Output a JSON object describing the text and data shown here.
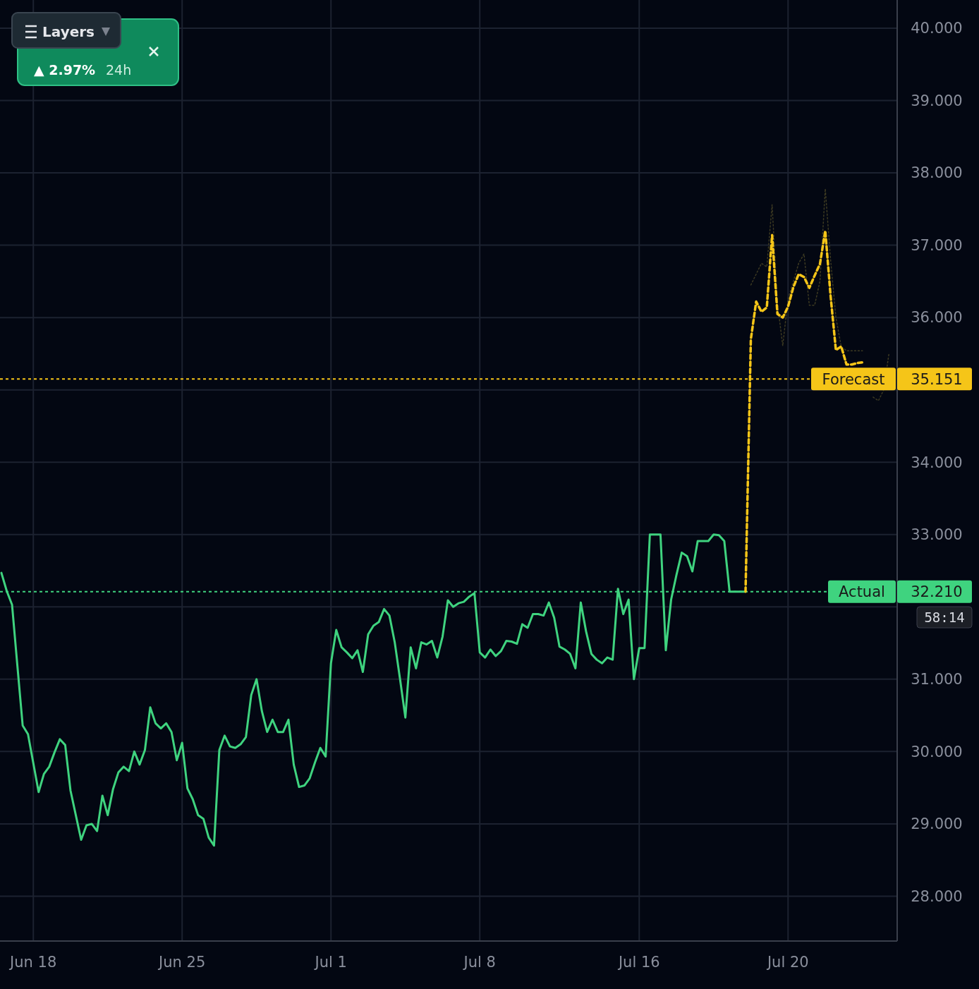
{
  "chart_data": {
    "type": "line",
    "ylim": [
      27.38,
      40.39
    ],
    "categories": [
      null,
      null,
      null,
      null,
      null,
      null,
      "Jun 18",
      null,
      null,
      null,
      null,
      null,
      null,
      null,
      null,
      null,
      null,
      null,
      null,
      null,
      null,
      null,
      null,
      null,
      null,
      null,
      null,
      null,
      null,
      null,
      null,
      null,
      null,
      null,
      "Jun 25",
      null,
      null,
      null,
      null,
      null,
      null,
      null,
      null,
      null,
      null,
      null,
      null,
      null,
      null,
      null,
      null,
      null,
      null,
      null,
      null,
      null,
      null,
      null,
      null,
      null,
      null,
      null,
      "Jul 1",
      null,
      null,
      null,
      null,
      null,
      null,
      null,
      null,
      null,
      null,
      null,
      null,
      null,
      null,
      null,
      null,
      null,
      null,
      null,
      null,
      null,
      null,
      null,
      null,
      null,
      null,
      null,
      "Jul 8",
      null,
      null,
      null,
      null,
      null,
      null,
      null,
      null,
      null,
      null,
      null,
      null,
      null,
      null,
      null,
      null,
      null,
      null,
      null,
      null,
      null,
      null,
      null,
      null,
      null,
      null,
      null,
      null,
      null,
      "Jul 16",
      null,
      null,
      null,
      null,
      null,
      null,
      null,
      null,
      null,
      null,
      null,
      null,
      null,
      null,
      null,
      null,
      null,
      null,
      null,
      null,
      null,
      null,
      null,
      null,
      null,
      null,
      null,
      "Jul 20",
      null,
      null,
      null,
      null,
      null,
      null,
      null,
      null,
      null,
      null,
      null,
      null,
      null,
      null,
      null,
      null,
      null,
      null,
      null,
      null
    ],
    "yticks": [
      {
        "value": 28,
        "label": "28.000"
      },
      {
        "value": 29,
        "label": "29.000"
      },
      {
        "value": 30,
        "label": "30.000"
      },
      {
        "value": 31,
        "label": "31.000"
      },
      {
        "value": 32,
        "label": null
      },
      {
        "value": 33,
        "label": "33.000"
      },
      {
        "value": 34,
        "label": "34.000"
      },
      {
        "value": 35,
        "label": null
      },
      {
        "value": 36,
        "label": "36.000"
      },
      {
        "value": 37,
        "label": "37.000"
      },
      {
        "value": 38,
        "label": "38.000"
      },
      {
        "value": 39,
        "label": "39.000"
      },
      {
        "value": 40,
        "label": "40.000"
      }
    ],
    "grid": true,
    "marker": "none",
    "series": [
      {
        "color": "#3fd37f",
        "line_style": "solid",
        "values": [
          32.47,
          32.22,
          32.03,
          31.19,
          30.36,
          30.24,
          29.84,
          29.44,
          29.69,
          29.79,
          29.99,
          30.17,
          30.09,
          29.46,
          29.12,
          28.78,
          28.98,
          29.0,
          28.9,
          29.39,
          29.12,
          29.48,
          29.71,
          29.79,
          29.73,
          30.0,
          29.82,
          30.02,
          30.61,
          30.39,
          30.32,
          30.39,
          30.27,
          29.88,
          30.12,
          29.49,
          29.34,
          29.12,
          29.07,
          28.81,
          28.7,
          30.02,
          30.22,
          30.07,
          30.05,
          30.1,
          30.2,
          30.78,
          31.0,
          30.56,
          30.27,
          30.44,
          30.27,
          30.27,
          30.44,
          29.82,
          29.51,
          29.53,
          29.63,
          29.85,
          30.05,
          29.93,
          31.22,
          31.68,
          31.44,
          31.37,
          31.29,
          31.4,
          31.1,
          31.62,
          31.74,
          31.79,
          31.97,
          31.88,
          31.51,
          31.0,
          30.47,
          31.44,
          31.15,
          31.51,
          31.48,
          31.53,
          31.3,
          31.59,
          32.09,
          32.0,
          32.05,
          32.07,
          32.14,
          32.19,
          31.37,
          31.3,
          31.41,
          31.32,
          31.39,
          31.53,
          31.52,
          31.49,
          31.76,
          31.71,
          31.9,
          31.9,
          31.88,
          32.06,
          31.85,
          31.45,
          31.41,
          31.35,
          31.15,
          32.06,
          31.66,
          31.35,
          31.27,
          31.22,
          31.3,
          31.27,
          32.25,
          31.9,
          32.1,
          31.0,
          31.43,
          31.43,
          33.0,
          33.0,
          33.0,
          31.4,
          32.1,
          32.44,
          32.75,
          32.7,
          32.49,
          32.91,
          32.91,
          32.91,
          33.0,
          32.99,
          32.91,
          32.21,
          32.21,
          32.21,
          32.21,
          null,
          null,
          null,
          null,
          null,
          null,
          null,
          null,
          null,
          null,
          null,
          null,
          null,
          null,
          null,
          null,
          null,
          null,
          null,
          null,
          null,
          null,
          null,
          null,
          null,
          null,
          null,
          null
        ]
      },
      {
        "color": "#3d3a22",
        "line_style": "dotted",
        "values": [
          null,
          null,
          null,
          null,
          null,
          null,
          null,
          null,
          null,
          null,
          null,
          null,
          null,
          null,
          null,
          null,
          null,
          null,
          null,
          null,
          null,
          null,
          null,
          null,
          null,
          null,
          null,
          null,
          null,
          null,
          null,
          null,
          null,
          null,
          null,
          null,
          null,
          null,
          null,
          null,
          null,
          null,
          null,
          null,
          null,
          null,
          null,
          null,
          null,
          null,
          null,
          null,
          null,
          null,
          null,
          null,
          null,
          null,
          null,
          null,
          null,
          null,
          null,
          null,
          null,
          null,
          null,
          null,
          null,
          null,
          null,
          null,
          null,
          null,
          null,
          null,
          null,
          null,
          null,
          null,
          null,
          null,
          null,
          null,
          null,
          null,
          null,
          null,
          null,
          null,
          null,
          null,
          null,
          null,
          null,
          null,
          null,
          null,
          null,
          null,
          null,
          null,
          null,
          null,
          null,
          null,
          null,
          null,
          null,
          null,
          null,
          null,
          null,
          null,
          null,
          null,
          null,
          null,
          null,
          null,
          null,
          null,
          null,
          null,
          null,
          null,
          null,
          null,
          null,
          null,
          null,
          null,
          null,
          null,
          null,
          null,
          null,
          null,
          null,
          null,
          null,
          36.45,
          36.6,
          36.75,
          36.7,
          37.56,
          36.2,
          35.61,
          36.26,
          36.5,
          36.75,
          36.88,
          36.17,
          36.17,
          36.5,
          37.78,
          36.8,
          36.0,
          35.6,
          35.54,
          35.54,
          35.54,
          35.54,
          null,
          34.9,
          34.85,
          35.0,
          35.51,
          null
        ]
      },
      {
        "color": "#f5c518",
        "line_style": "dashed",
        "values": [
          null,
          null,
          null,
          null,
          null,
          null,
          null,
          null,
          null,
          null,
          null,
          null,
          null,
          null,
          null,
          null,
          null,
          null,
          null,
          null,
          null,
          null,
          null,
          null,
          null,
          null,
          null,
          null,
          null,
          null,
          null,
          null,
          null,
          null,
          null,
          null,
          null,
          null,
          null,
          null,
          null,
          null,
          null,
          null,
          null,
          null,
          null,
          null,
          null,
          null,
          null,
          null,
          null,
          null,
          null,
          null,
          null,
          null,
          null,
          null,
          null,
          null,
          null,
          null,
          null,
          null,
          null,
          null,
          null,
          null,
          null,
          null,
          null,
          null,
          null,
          null,
          null,
          null,
          null,
          null,
          null,
          null,
          null,
          null,
          null,
          null,
          null,
          null,
          null,
          null,
          null,
          null,
          null,
          null,
          null,
          null,
          null,
          null,
          null,
          null,
          null,
          null,
          null,
          null,
          null,
          null,
          null,
          null,
          null,
          null,
          null,
          null,
          null,
          null,
          null,
          null,
          null,
          null,
          null,
          null,
          null,
          null,
          null,
          null,
          null,
          null,
          null,
          null,
          null,
          null,
          null,
          null,
          null,
          null,
          null,
          null,
          null,
          null,
          null,
          null,
          32.21,
          35.7,
          36.22,
          36.08,
          36.14,
          37.14,
          36.05,
          36.0,
          36.15,
          36.42,
          36.6,
          36.56,
          36.41,
          36.58,
          36.74,
          37.2,
          36.3,
          35.55,
          35.6,
          35.35,
          35.35,
          35.37,
          35.38,
          null,
          null,
          null,
          null,
          null,
          null
        ]
      }
    ],
    "ref_lines": [
      {
        "axis": "y",
        "value": 35.151,
        "label": "Forecast",
        "color": "#f5c518",
        "line_style": "dashed"
      },
      {
        "axis": "y",
        "value": 32.21,
        "label": "Actual",
        "color": "#3fd37f",
        "line_style": "dashed"
      }
    ],
    "annotations": [
      "Layers",
      "▲ 2.97%",
      "24h",
      "58:14",
      "35.151",
      "32.210"
    ]
  }
}
